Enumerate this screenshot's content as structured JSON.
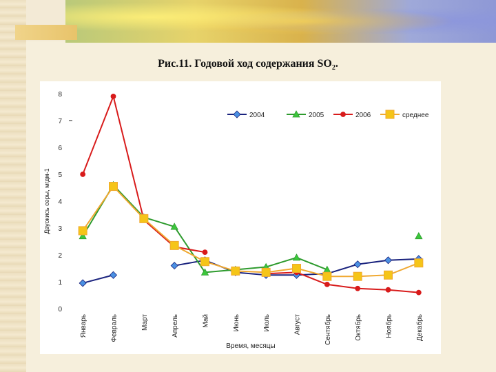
{
  "page": {
    "title_main": "Рис.11. Годовой ход содержания SO",
    "title_sub": "2",
    "title_end": "."
  },
  "chart_data": {
    "type": "line",
    "title": "Рис.11. Годовой ход содержания SO2.",
    "xlabel": "Время, месяцы",
    "ylabel": "Двуокись серы, мгдм-1",
    "ylim": [
      0,
      8
    ],
    "yticks": [
      "0",
      "1",
      "2",
      "3",
      "4",
      "5",
      "6",
      "7",
      "8"
    ],
    "categories": [
      "Январь",
      "Февраль",
      "Март",
      "Апрель",
      "Май",
      "Июнь",
      "Июль",
      "Август",
      "Сентябрь",
      "Октябрь",
      "Ноябрь",
      "Декабрь"
    ],
    "legend_position": "top-right",
    "series": [
      {
        "name": "2004",
        "color": "#1a237e",
        "marker_color": "#4a90e2",
        "marker": "diamond",
        "values": [
          0.95,
          1.25,
          null,
          1.6,
          1.8,
          1.35,
          1.25,
          1.25,
          1.3,
          1.65,
          1.8,
          1.85
        ]
      },
      {
        "name": "2005",
        "color": "#2e9b2e",
        "marker_color": "#3cc63c",
        "marker": "triangle",
        "values": [
          2.7,
          4.6,
          3.4,
          3.05,
          1.35,
          1.45,
          1.55,
          1.9,
          1.45,
          null,
          null,
          2.7
        ]
      },
      {
        "name": "2006",
        "color": "#d81b1b",
        "marker_color": "#d81b1b",
        "marker": "circle",
        "values": [
          5.0,
          7.9,
          3.3,
          2.3,
          2.1,
          null,
          1.3,
          1.35,
          0.9,
          0.75,
          0.7,
          0.6
        ]
      },
      {
        "name": "среднее",
        "color": "#f0a830",
        "marker_color": "#f5c518",
        "marker": "square",
        "values": [
          2.9,
          4.55,
          3.35,
          2.35,
          1.75,
          1.4,
          1.35,
          1.5,
          1.2,
          1.2,
          1.25,
          1.7
        ]
      }
    ]
  }
}
